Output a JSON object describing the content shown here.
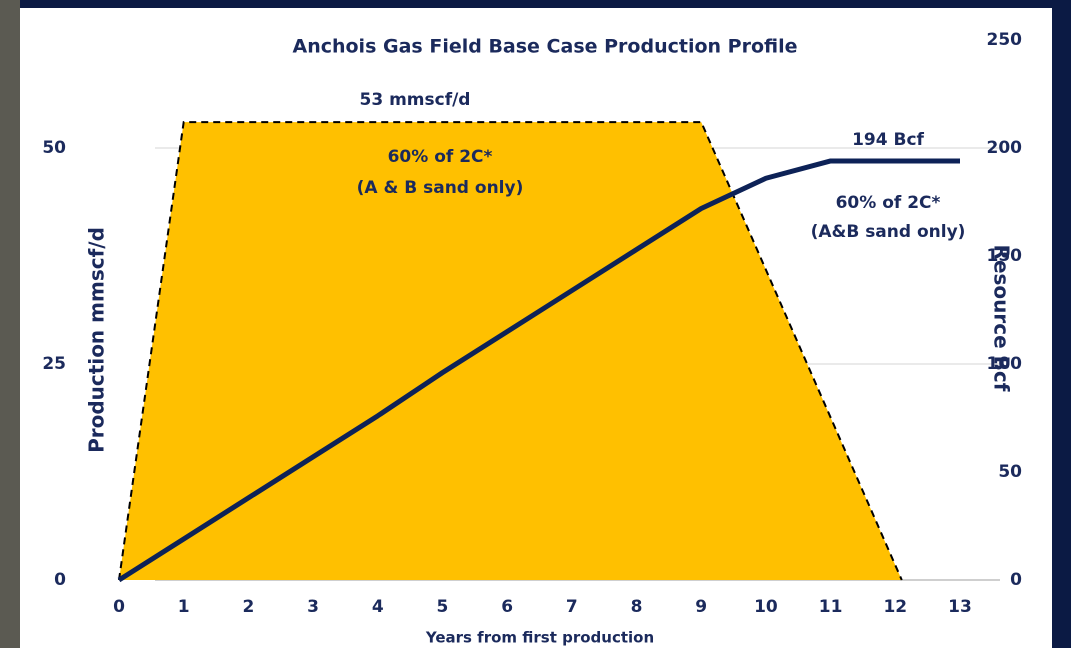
{
  "chart_data": {
    "type": "combo",
    "title": "Anchois Gas Field Base Case Production Profile",
    "x_label": "Years from first production",
    "y_label": "Production mmscf/d",
    "y2_label": "Resource Bcf",
    "xlim": [
      0,
      13
    ],
    "xticks": [
      0,
      1,
      2,
      3,
      4,
      5,
      6,
      7,
      8,
      9,
      10,
      11,
      12,
      13
    ],
    "ylim": [
      0,
      62.5
    ],
    "yticks": [
      0,
      25,
      50
    ],
    "y2lim": [
      0,
      250
    ],
    "y2ticks": [
      0,
      50,
      100,
      150,
      200,
      250
    ],
    "grid": true,
    "series": [
      {
        "type": "area",
        "color": "#ffc000",
        "x": [
          0,
          1,
          9,
          12.1
        ],
        "values": [
          0,
          53,
          53,
          0
        ]
      },
      {
        "type": "line",
        "color": "#0d2257",
        "axis": "y2",
        "x": [
          0,
          1,
          2,
          3,
          4,
          5,
          6,
          7,
          8,
          9,
          10,
          11,
          12,
          13
        ],
        "values": [
          0,
          19,
          38,
          57,
          76,
          96,
          115,
          134,
          153,
          172,
          186,
          194,
          194,
          194
        ]
      }
    ],
    "annotations": [
      "53 mmscf/d",
      "60% of 2C*",
      "(A & B sand only)",
      "194 Bcf",
      "60% of 2C*",
      "(A&B sand only)"
    ]
  }
}
